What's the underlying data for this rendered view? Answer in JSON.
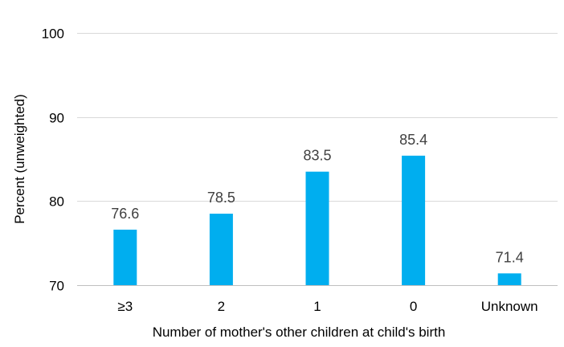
{
  "chart_data": {
    "type": "bar",
    "categories": [
      "≥3",
      "2",
      "1",
      "0",
      "Unknown"
    ],
    "values": [
      76.6,
      78.5,
      83.5,
      85.4,
      71.4
    ],
    "data_labels": [
      "76.6",
      "78.5",
      "83.5",
      "85.4",
      "71.4"
    ],
    "title": "",
    "xlabel": "Number of mother's other children at child's birth",
    "ylabel": "Percent (unweighted)",
    "ylim": [
      70,
      100
    ],
    "yticks": [
      70,
      80,
      90,
      100
    ],
    "ytick_labels": [
      "70",
      "80",
      "90",
      "100"
    ],
    "grid": true,
    "legend": "none",
    "colors": {
      "bar": "#00AEEF",
      "grid": "#D9D9D9",
      "label": "#404040"
    }
  }
}
